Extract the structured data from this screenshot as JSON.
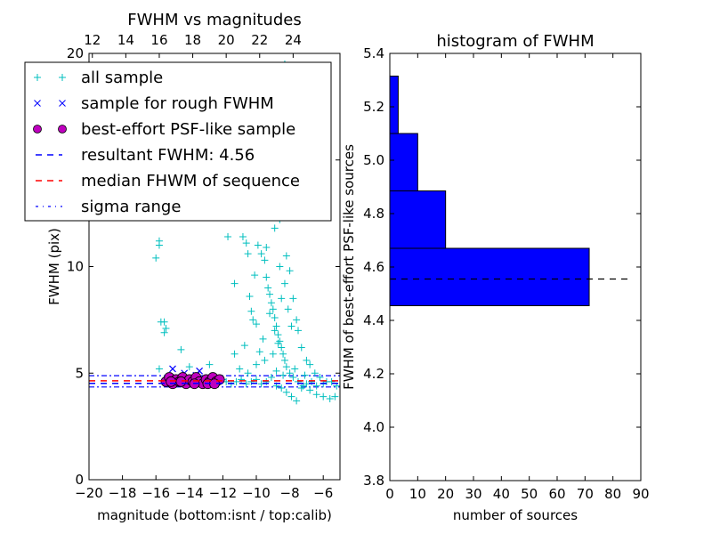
{
  "chart_data": [
    {
      "type": "scatter",
      "title": "FWHM vs magnitudes",
      "xlabel": "magnitude (bottom:isnt / top:calib)",
      "ylabel": "FWHM (pix)",
      "xlim": [
        -20,
        -5
      ],
      "ylim": [
        0,
        20
      ],
      "x_ticks": [
        -20,
        -18,
        -16,
        -14,
        -12,
        -10,
        -8,
        -6
      ],
      "x_tick_labels": [
        "−20",
        "−18",
        "−16",
        "−14",
        "−12",
        "−10",
        "−8",
        "−6"
      ],
      "y_ticks": [
        0,
        5,
        10,
        15,
        20
      ],
      "y_tick_labels": [
        "0",
        "5",
        "10",
        "15",
        "20"
      ],
      "top_x_ticks_labels": [
        "12",
        "14",
        "16",
        "18",
        "20",
        "22",
        "24"
      ],
      "top_x_offset": 31.8,
      "legend": {
        "placement": "upper-left",
        "entries": [
          {
            "label": "all sample",
            "marker": "plus",
            "color": "#00bfbf"
          },
          {
            "label": "sample for rough FWHM",
            "marker": "x",
            "color": "#0000ff"
          },
          {
            "label": "best-effort PSF-like sample",
            "marker": "circle",
            "color": "#bf00bf"
          },
          {
            "label": "resultant FWHM: 4.56",
            "marker": "dashed",
            "color": "#0000ff"
          },
          {
            "label": "median FHWM of sequence",
            "marker": "dashed",
            "color": "#ff0000"
          },
          {
            "label": "sigma range",
            "marker": "dashdot",
            "color": "#0000ff"
          }
        ]
      },
      "lines": {
        "resultant_fwhm": 4.56,
        "median_fwhm": 4.6,
        "sigma_low": 4.35,
        "sigma_high": 4.88
      },
      "series": [
        {
          "name": "all sample",
          "points": [
            [
              -16.0,
              10.4
            ],
            [
              -15.8,
              11.0
            ],
            [
              -15.8,
              11.2
            ],
            [
              -15.7,
              7.4
            ],
            [
              -15.5,
              7.4
            ],
            [
              -15.5,
              6.9
            ],
            [
              -15.4,
              7.1
            ],
            [
              -14.5,
              6.1
            ],
            [
              -15.8,
              5.2
            ],
            [
              -14.0,
              5.3
            ],
            [
              -12.8,
              5.4
            ],
            [
              -11.7,
              11.4
            ],
            [
              -11.3,
              5.9
            ],
            [
              -10.8,
              11.4
            ],
            [
              -10.6,
              11.1
            ],
            [
              -10.5,
              10.6
            ],
            [
              -11.3,
              9.2
            ],
            [
              -10.4,
              8.6
            ],
            [
              -10.3,
              7.9
            ],
            [
              -10.2,
              7.5
            ],
            [
              -10.0,
              7.3
            ],
            [
              -9.9,
              11.0
            ],
            [
              -9.7,
              10.6
            ],
            [
              -9.5,
              10.3
            ],
            [
              -9.4,
              9.5
            ],
            [
              -9.3,
              9.0
            ],
            [
              -9.2,
              8.7
            ],
            [
              -9.1,
              8.3
            ],
            [
              -9.0,
              8.0
            ],
            [
              -8.9,
              7.6
            ],
            [
              -8.8,
              7.2
            ],
            [
              -8.7,
              6.8
            ],
            [
              -8.6,
              6.5
            ],
            [
              -8.5,
              6.2
            ],
            [
              -8.4,
              5.9
            ],
            [
              -8.3,
              5.6
            ],
            [
              -8.2,
              5.3
            ],
            [
              -8.0,
              5.0
            ],
            [
              -7.8,
              4.8
            ],
            [
              -7.5,
              4.6
            ],
            [
              -7.2,
              4.4
            ],
            [
              -6.8,
              4.2
            ],
            [
              -6.4,
              4.0
            ],
            [
              -6.0,
              3.9
            ],
            [
              -5.6,
              3.8
            ],
            [
              -5.3,
              3.9
            ],
            [
              -9.0,
              12.5
            ],
            [
              -9.1,
              14.0
            ],
            [
              -8.8,
              13.2
            ],
            [
              -8.9,
              11.8
            ],
            [
              -8.6,
              12.2
            ],
            [
              -8.7,
              15.5
            ],
            [
              -8.4,
              16.3
            ],
            [
              -8.6,
              18.0
            ],
            [
              -8.5,
              19.4
            ],
            [
              -8.3,
              19.5
            ],
            [
              -9.3,
              13.5
            ],
            [
              -9.5,
              12.8
            ],
            [
              -8.2,
              10.5
            ],
            [
              -8.0,
              9.8
            ],
            [
              -7.8,
              8.5
            ],
            [
              -7.6,
              7.5
            ],
            [
              -7.5,
              7.0
            ],
            [
              -7.3,
              6.2
            ],
            [
              -7.0,
              5.6
            ],
            [
              -6.8,
              5.4
            ],
            [
              -6.5,
              5.0
            ],
            [
              -6.2,
              4.8
            ],
            [
              -5.8,
              4.6
            ],
            [
              -5.5,
              4.6
            ],
            [
              -11.8,
              4.6
            ],
            [
              -11.5,
              4.5
            ],
            [
              -11.2,
              4.6
            ],
            [
              -10.9,
              4.7
            ],
            [
              -10.6,
              4.5
            ],
            [
              -10.3,
              4.6
            ],
            [
              -10.0,
              4.7
            ],
            [
              -9.7,
              4.5
            ],
            [
              -9.4,
              4.6
            ],
            [
              -9.1,
              4.8
            ],
            [
              -8.8,
              4.4
            ],
            [
              -8.5,
              4.3
            ],
            [
              -8.2,
              4.1
            ],
            [
              -7.9,
              3.9
            ],
            [
              -7.6,
              3.7
            ],
            [
              -7.3,
              4.3
            ],
            [
              -7.0,
              4.5
            ],
            [
              -6.7,
              4.6
            ],
            [
              -6.4,
              4.4
            ],
            [
              -11.0,
              5.2
            ],
            [
              -10.5,
              5.0
            ],
            [
              -10.0,
              5.4
            ],
            [
              -9.5,
              5.6
            ],
            [
              -9.0,
              5.9
            ],
            [
              -8.7,
              6.4
            ],
            [
              -8.9,
              7.0
            ],
            [
              -9.2,
              7.8
            ],
            [
              -8.5,
              8.5
            ],
            [
              -8.3,
              9.2
            ],
            [
              -8.1,
              8.0
            ],
            [
              -7.9,
              7.2
            ],
            [
              -8.6,
              10.0
            ],
            [
              -9.4,
              10.9
            ],
            [
              -10.1,
              9.6
            ],
            [
              -10.7,
              6.3
            ],
            [
              -9.8,
              6.0
            ],
            [
              -9.6,
              6.6
            ],
            [
              -8.8,
              5.1
            ],
            [
              -8.4,
              4.9
            ],
            [
              -7.7,
              5.2
            ],
            [
              -7.1,
              4.9
            ],
            [
              -12.5,
              4.6
            ],
            [
              -12.3,
              4.5
            ],
            [
              -12.0,
              4.7
            ],
            [
              -5.2,
              4.4
            ],
            [
              -6.0,
              4.5
            ]
          ]
        },
        {
          "name": "sample for rough FWHM",
          "points": [
            [
              -15.0,
              5.2
            ],
            [
              -14.3,
              5.0
            ],
            [
              -13.4,
              5.1
            ],
            [
              -13.6,
              4.9
            ],
            [
              -14.8,
              4.8
            ],
            [
              -12.6,
              4.6
            ]
          ]
        },
        {
          "name": "best-effort PSF-like sample",
          "points": [
            [
              -15.4,
              4.6
            ],
            [
              -15.2,
              4.8
            ],
            [
              -15.0,
              4.5
            ],
            [
              -14.8,
              4.7
            ],
            [
              -14.6,
              4.6
            ],
            [
              -14.4,
              4.8
            ],
            [
              -14.2,
              4.5
            ],
            [
              -14.0,
              4.7
            ],
            [
              -13.8,
              4.6
            ],
            [
              -13.6,
              4.8
            ],
            [
              -13.4,
              4.6
            ],
            [
              -13.2,
              4.5
            ],
            [
              -13.0,
              4.7
            ],
            [
              -12.8,
              4.6
            ],
            [
              -12.6,
              4.8
            ],
            [
              -12.4,
              4.6
            ],
            [
              -12.2,
              4.7
            ],
            [
              -15.1,
              4.6
            ],
            [
              -14.5,
              4.6
            ],
            [
              -13.7,
              4.5
            ],
            [
              -12.9,
              4.5
            ],
            [
              -12.5,
              4.5
            ]
          ]
        }
      ]
    },
    {
      "type": "bar",
      "orientation": "horizontal",
      "title": "histogram of FWHM",
      "xlabel": "number of sources",
      "ylabel": "FWHM of best-effort PSF-like sources",
      "xlim": [
        0,
        90
      ],
      "ylim": [
        3.8,
        5.4
      ],
      "x_ticks": [
        0,
        10,
        20,
        30,
        40,
        50,
        60,
        70,
        80,
        90
      ],
      "y_ticks": [
        3.8,
        4.0,
        4.2,
        4.4,
        4.6,
        4.8,
        5.0,
        5.2,
        5.4
      ],
      "y_tick_labels": [
        "3.8",
        "4.0",
        "4.2",
        "4.4",
        "4.6",
        "4.8",
        "5.0",
        "5.2",
        "5.4"
      ],
      "bar_color": "#0000ff",
      "bins": [
        {
          "from": 4.455,
          "to": 4.67,
          "count": 71.5
        },
        {
          "from": 4.67,
          "to": 4.885,
          "count": 20
        },
        {
          "from": 4.885,
          "to": 5.1,
          "count": 10
        },
        {
          "from": 5.1,
          "to": 5.315,
          "count": 3
        }
      ],
      "reference_line": {
        "y": 4.555,
        "x_to": 86,
        "style": "dashed",
        "color": "#000000"
      }
    }
  ]
}
